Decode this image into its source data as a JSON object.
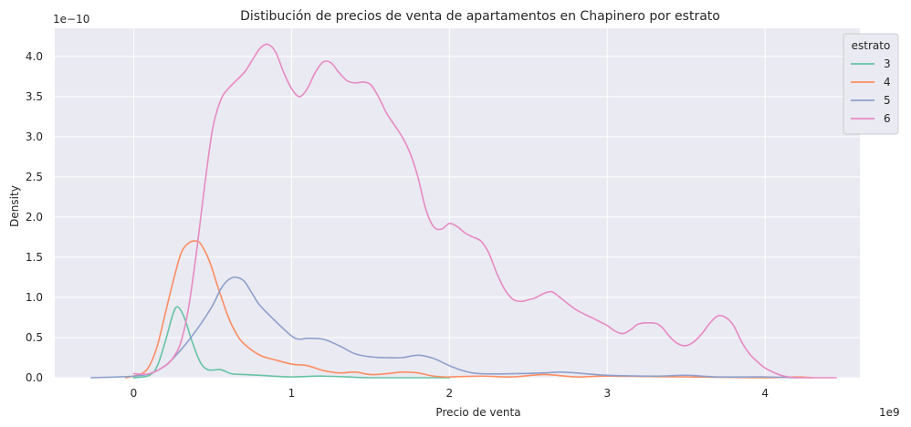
{
  "chart_data": {
    "type": "line",
    "title": "Distibución de precios de venta de apartamentos en Chapinero por estrato",
    "xlabel": "Precio de venta",
    "ylabel": "Density",
    "x_offset_label": "1e9",
    "y_offset_label": "1e−10",
    "xlim": [
      -0.5,
      4.6
    ],
    "ylim": [
      0,
      4.35
    ],
    "x_ticks": [
      0,
      1,
      2,
      3,
      4
    ],
    "x_tick_labels": [
      "0",
      "1",
      "2",
      "3",
      "4"
    ],
    "y_ticks": [
      0,
      0.5,
      1.0,
      1.5,
      2.0,
      2.5,
      3.0,
      3.5,
      4.0
    ],
    "y_tick_labels": [
      "0.0",
      "0.5",
      "1.0",
      "1.5",
      "2.0",
      "2.5",
      "3.0",
      "3.5",
      "4.0"
    ],
    "grid": true,
    "legend": {
      "title": "estrato",
      "placement": "top-right"
    },
    "series": [
      {
        "name": "3",
        "color": "#66c2a5",
        "x": [
          0.0,
          0.1,
          0.15,
          0.2,
          0.25,
          0.28,
          0.32,
          0.37,
          0.42,
          0.47,
          0.55,
          0.62,
          0.7,
          0.8,
          1.0,
          1.2,
          1.5,
          1.8,
          2.0
        ],
        "y": [
          0.0,
          0.03,
          0.15,
          0.45,
          0.8,
          0.88,
          0.75,
          0.45,
          0.2,
          0.1,
          0.1,
          0.05,
          0.04,
          0.03,
          0.01,
          0.02,
          0.0,
          0.0,
          0.0
        ]
      },
      {
        "name": "4",
        "color": "#fc8d62",
        "x": [
          -0.05,
          0.05,
          0.1,
          0.15,
          0.2,
          0.25,
          0.3,
          0.35,
          0.4,
          0.43,
          0.48,
          0.53,
          0.6,
          0.65,
          0.7,
          0.8,
          0.9,
          1.0,
          1.1,
          1.2,
          1.3,
          1.4,
          1.5,
          1.6,
          1.7,
          1.8,
          1.9,
          2.0,
          2.2,
          2.4,
          2.6,
          2.8,
          3.0,
          3.5,
          4.0,
          4.2,
          4.3
        ],
        "y": [
          0.0,
          0.05,
          0.15,
          0.4,
          0.8,
          1.2,
          1.55,
          1.68,
          1.7,
          1.65,
          1.45,
          1.15,
          0.75,
          0.55,
          0.42,
          0.28,
          0.22,
          0.17,
          0.15,
          0.09,
          0.06,
          0.07,
          0.04,
          0.05,
          0.07,
          0.06,
          0.02,
          0.01,
          0.02,
          0.01,
          0.04,
          0.01,
          0.02,
          0.01,
          0.0,
          0.01,
          0.0
        ]
      },
      {
        "name": "5",
        "color": "#8da0cb",
        "x": [
          -0.27,
          -0.1,
          0.0,
          0.1,
          0.2,
          0.3,
          0.4,
          0.5,
          0.55,
          0.6,
          0.65,
          0.7,
          0.75,
          0.8,
          0.9,
          1.0,
          1.05,
          1.1,
          1.2,
          1.3,
          1.4,
          1.5,
          1.6,
          1.7,
          1.8,
          1.9,
          2.0,
          2.1,
          2.2,
          2.4,
          2.6,
          2.7,
          2.8,
          3.0,
          3.3,
          3.5,
          3.7,
          4.0,
          4.2
        ],
        "y": [
          0.0,
          0.01,
          0.02,
          0.05,
          0.15,
          0.35,
          0.6,
          0.9,
          1.1,
          1.22,
          1.25,
          1.2,
          1.05,
          0.9,
          0.7,
          0.52,
          0.48,
          0.49,
          0.48,
          0.4,
          0.3,
          0.26,
          0.25,
          0.25,
          0.28,
          0.24,
          0.15,
          0.08,
          0.05,
          0.05,
          0.06,
          0.07,
          0.06,
          0.03,
          0.02,
          0.03,
          0.01,
          0.01,
          0.0
        ]
      },
      {
        "name": "6",
        "color": "#e78ac3",
        "x": [
          0.0,
          0.1,
          0.2,
          0.25,
          0.3,
          0.35,
          0.4,
          0.45,
          0.5,
          0.55,
          0.6,
          0.7,
          0.75,
          0.8,
          0.85,
          0.9,
          0.95,
          1.0,
          1.05,
          1.1,
          1.15,
          1.2,
          1.25,
          1.3,
          1.35,
          1.4,
          1.45,
          1.5,
          1.55,
          1.6,
          1.65,
          1.7,
          1.75,
          1.8,
          1.85,
          1.9,
          1.95,
          2.0,
          2.05,
          2.1,
          2.15,
          2.2,
          2.25,
          2.3,
          2.35,
          2.4,
          2.45,
          2.5,
          2.55,
          2.6,
          2.65,
          2.7,
          2.8,
          2.9,
          2.95,
          3.0,
          3.05,
          3.1,
          3.15,
          3.2,
          3.3,
          3.35,
          3.4,
          3.45,
          3.5,
          3.55,
          3.6,
          3.65,
          3.7,
          3.75,
          3.8,
          3.85,
          3.9,
          3.95,
          4.0,
          4.05,
          4.1,
          4.15,
          4.2,
          4.25,
          4.3,
          4.35,
          4.4,
          4.45
        ],
        "y": [
          0.05,
          0.05,
          0.15,
          0.25,
          0.45,
          0.9,
          1.6,
          2.4,
          3.1,
          3.45,
          3.6,
          3.8,
          3.95,
          4.1,
          4.15,
          4.05,
          3.8,
          3.6,
          3.5,
          3.6,
          3.8,
          3.93,
          3.92,
          3.8,
          3.7,
          3.67,
          3.68,
          3.65,
          3.5,
          3.3,
          3.15,
          3.0,
          2.8,
          2.5,
          2.1,
          1.88,
          1.85,
          1.92,
          1.88,
          1.8,
          1.75,
          1.7,
          1.55,
          1.3,
          1.1,
          0.98,
          0.95,
          0.97,
          1.0,
          1.05,
          1.07,
          1.0,
          0.85,
          0.75,
          0.7,
          0.65,
          0.58,
          0.55,
          0.6,
          0.67,
          0.68,
          0.62,
          0.5,
          0.42,
          0.4,
          0.45,
          0.55,
          0.68,
          0.77,
          0.75,
          0.65,
          0.45,
          0.3,
          0.2,
          0.12,
          0.07,
          0.03,
          0.01,
          0.0,
          0.0,
          0.0,
          0.0,
          0.0,
          0.0
        ]
      }
    ]
  }
}
